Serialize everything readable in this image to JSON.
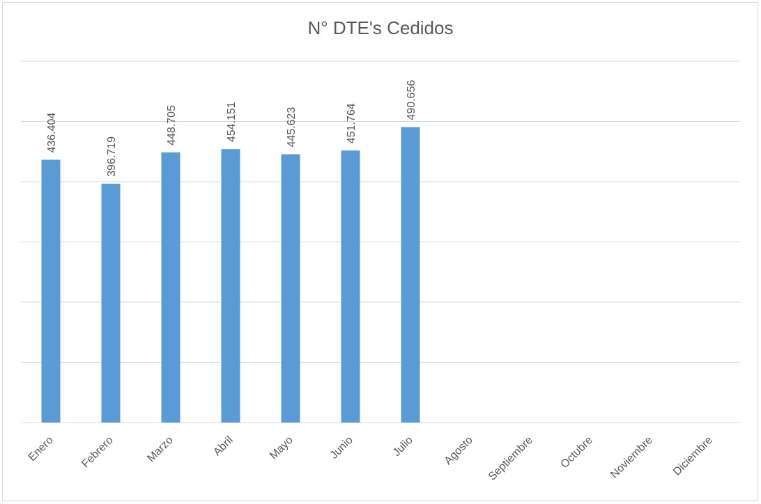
{
  "chart_data": {
    "type": "bar",
    "title": "N° DTE's Cedidos",
    "categories": [
      "Enero",
      "Febrero",
      "Marzo",
      "Abril",
      "Mayo",
      "Junio",
      "Julio",
      "Agosto",
      "Septiembre",
      "Octubre",
      "Noviembre",
      "Diciembre"
    ],
    "values": [
      436404,
      396719,
      448705,
      454151,
      445623,
      451764,
      490656,
      null,
      null,
      null,
      null,
      null
    ],
    "value_labels": [
      "436.404",
      "396.719",
      "448.705",
      "454.151",
      "445.623",
      "451.764",
      "490.656",
      null,
      null,
      null,
      null,
      null
    ],
    "color": "#5b9bd5",
    "ylim": [
      0,
      600000
    ],
    "yticks": [
      0,
      100000,
      200000,
      300000,
      400000,
      500000,
      600000
    ],
    "grid": true
  }
}
